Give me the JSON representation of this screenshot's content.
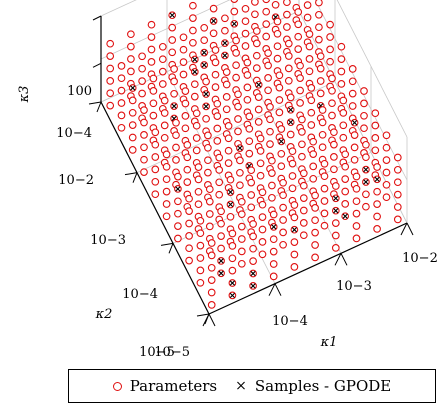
{
  "chart_data": {
    "type": "scatter",
    "projection": "3d",
    "axes": {
      "x": {
        "label": "κ1",
        "scale": "log",
        "ticks": [
          "10−5",
          "10−4",
          "10−3",
          "10−2"
        ]
      },
      "y": {
        "label": "κ2",
        "scale": "log",
        "ticks": [
          "10−5",
          "10−4",
          "10−3",
          "10−2"
        ]
      },
      "z": {
        "label": "κ3",
        "scale": "log",
        "ticks": [
          "10−4",
          "100"
        ]
      }
    },
    "grid": true,
    "legend_position": "bottom",
    "colors": {
      "parameters": "#e01010",
      "samples": "#000000"
    },
    "series": [
      {
        "name": "Parameters",
        "marker": "circle",
        "grid_per_axis": 10,
        "values_per_axis": 6
      },
      {
        "name": "Samples - GPODE",
        "marker": "x"
      }
    ]
  },
  "legend": {
    "parameters_label": "Parameters",
    "samples_label": "Samples - GPODE",
    "parameters_icon": "circle-marker-icon",
    "samples_icon": "x-marker-icon"
  }
}
